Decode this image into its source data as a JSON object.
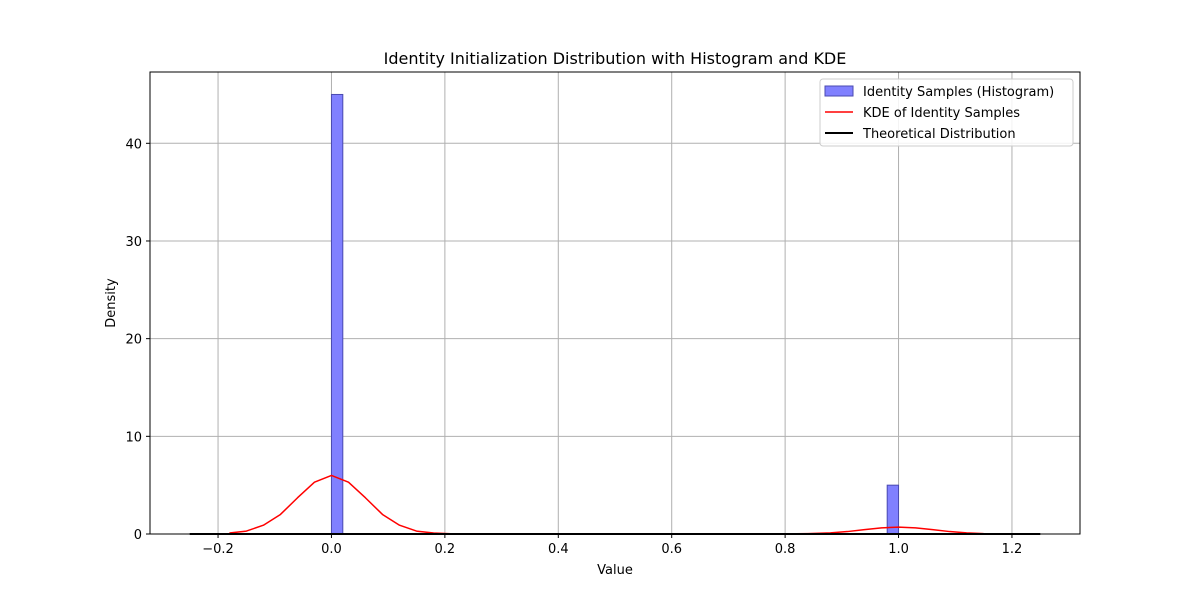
{
  "chart_data": {
    "type": "bar",
    "title": "Identity Initialization Distribution with Histogram and KDE",
    "xlabel": "Value",
    "ylabel": "Density",
    "xlim": [
      -0.32,
      1.32
    ],
    "ylim": [
      0,
      47.3
    ],
    "xticks": [
      -0.2,
      0.0,
      0.2,
      0.4,
      0.6,
      0.8,
      1.0,
      1.2
    ],
    "xtick_labels": [
      "−0.2",
      "0.0",
      "0.2",
      "0.4",
      "0.6",
      "0.8",
      "1.0",
      "1.2"
    ],
    "yticks": [
      0,
      10,
      20,
      30,
      40
    ],
    "ytick_labels": [
      "0",
      "10",
      "20",
      "30",
      "40"
    ],
    "grid": true,
    "legend_position": "top-right",
    "colors": {
      "histogram_fill": "#8080ff",
      "histogram_edge": "#4a4ab0",
      "kde": "#ff0000",
      "theoretical": "#000000",
      "grid": "#b0b0b0"
    },
    "series": [
      {
        "name": "Identity Samples (Histogram)",
        "kind": "histogram",
        "bins": [
          {
            "x0": 0.0,
            "x1": 0.02,
            "value": 45
          },
          {
            "x0": 0.98,
            "x1": 1.0,
            "value": 5
          }
        ]
      },
      {
        "name": "KDE of Identity Samples",
        "kind": "line",
        "x": [
          -0.18,
          -0.15,
          -0.12,
          -0.09,
          -0.06,
          -0.03,
          0.0,
          0.03,
          0.06,
          0.09,
          0.12,
          0.15,
          0.18,
          0.21,
          0.25,
          0.3,
          0.4,
          0.5,
          0.6,
          0.7,
          0.76,
          0.8,
          0.84,
          0.88,
          0.91,
          0.94,
          0.97,
          1.0,
          1.03,
          1.06,
          1.09,
          1.12,
          1.15,
          1.18
        ],
        "y": [
          0.1,
          0.3,
          0.9,
          2.0,
          3.7,
          5.3,
          6.0,
          5.3,
          3.7,
          2.0,
          0.9,
          0.3,
          0.1,
          0.02,
          0.0,
          0.0,
          0.0,
          0.0,
          0.0,
          0.0,
          0.0,
          0.01,
          0.04,
          0.12,
          0.25,
          0.45,
          0.63,
          0.7,
          0.63,
          0.45,
          0.25,
          0.12,
          0.04,
          0.01
        ]
      },
      {
        "name": "Theoretical Distribution",
        "kind": "line",
        "x": [
          -0.25,
          1.25
        ],
        "y": [
          0,
          0
        ]
      }
    ]
  }
}
